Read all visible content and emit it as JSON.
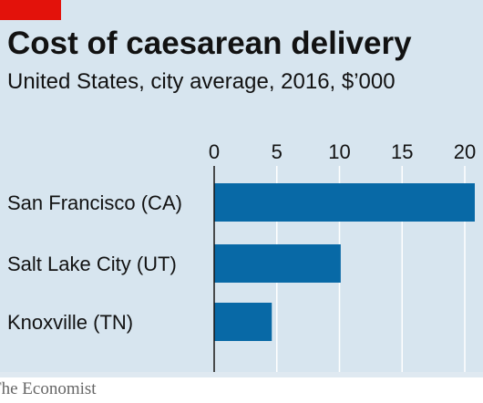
{
  "chart_data": {
    "type": "bar",
    "orientation": "horizontal",
    "title": "Cost of caesarean delivery",
    "subtitle": "United States, city average, 2016, $’000",
    "categories": [
      "San Francisco (CA)",
      "Salt Lake City (UT)",
      "Knoxville (TN)"
    ],
    "values": [
      20.8,
      10.1,
      4.6
    ],
    "xticks": [
      "0",
      "5",
      "10",
      "15",
      "20"
    ],
    "xlim": [
      0,
      20.8
    ],
    "grid": true,
    "bar_color": "#0869a6"
  },
  "accent_color": "#e3120b",
  "source": "The Economist"
}
